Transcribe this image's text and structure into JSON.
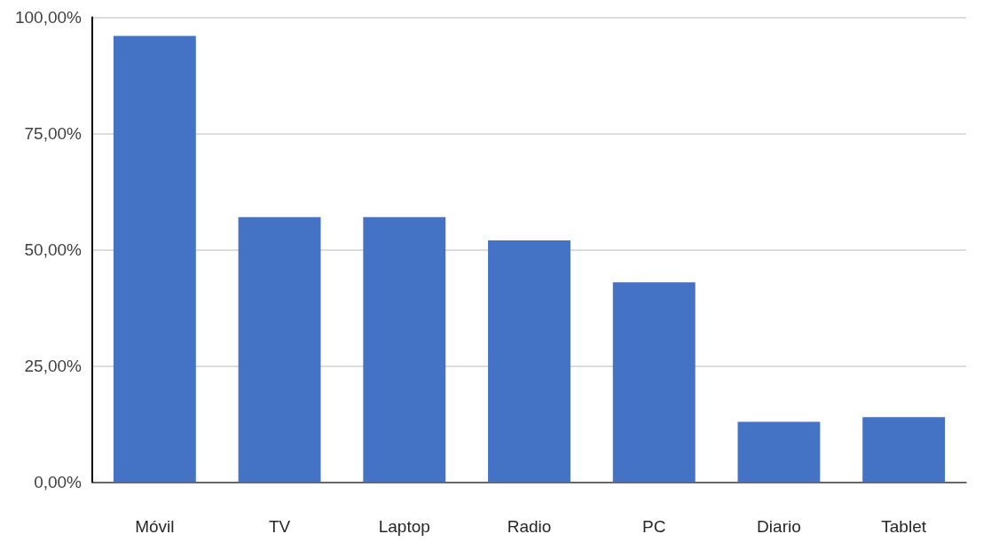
{
  "chart_data": {
    "type": "bar",
    "categories": [
      "Móvil",
      "TV",
      "Laptop",
      "Radio",
      "PC",
      "Diario",
      "Tablet"
    ],
    "values": [
      96,
      57,
      57,
      52,
      43,
      13,
      14
    ],
    "color": "#4472c4",
    "ylim": [
      0,
      100
    ],
    "yticks": [
      {
        "value": 0,
        "label": "0,00%"
      },
      {
        "value": 25,
        "label": "25,00%"
      },
      {
        "value": 50,
        "label": "50,00%"
      },
      {
        "value": 75,
        "label": "75,00%"
      },
      {
        "value": 100,
        "label": "100,00%"
      }
    ],
    "grid": "y"
  }
}
